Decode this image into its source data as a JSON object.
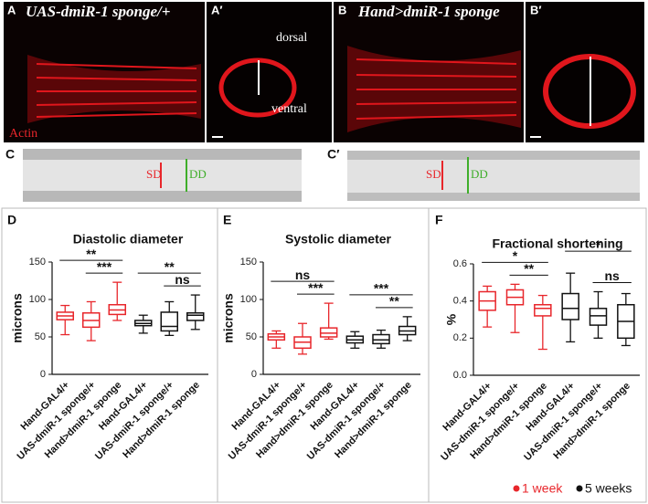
{
  "panels": {
    "a_label": "A",
    "a_title": "UAS-dmiR-1 sponge/+",
    "a_prime": "A′",
    "dorsal": "dorsal",
    "ventral": "ventral",
    "actin": "Actin",
    "b_label": "B",
    "b_title": "Hand>dmiR-1 sponge",
    "b_prime": "B′",
    "c_label": "C",
    "c_prime": "C′",
    "c_sd": "SD",
    "c_dd": "DD",
    "cp_sd": "SD",
    "cp_dd": "DD",
    "d_label": "D",
    "e_label": "E",
    "f_label": "F"
  },
  "legend": [
    {
      "name": "1 week",
      "color": "#e8262b"
    },
    {
      "name": "5 weeks",
      "color": "#111111"
    }
  ],
  "chart_data": [
    {
      "type": "box",
      "title": "Diastolic diameter",
      "y_label": "microns",
      "categories": [
        "Hand-GAL4/+",
        "UAS-dmiR-1 sponge/+",
        "Hand>dmiR-1 sponge",
        "Hand-GAL4/+",
        "UAS-dmiR-1 sponge/+",
        "Hand>dmiR-1 sponge"
      ],
      "colors": [
        "#e8262b",
        "#e8262b",
        "#e8262b",
        "#111111",
        "#111111",
        "#111111"
      ],
      "boxes": [
        {
          "min": 53,
          "q1": 73,
          "median": 78,
          "q3": 83,
          "max": 92
        },
        {
          "min": 45,
          "q1": 63,
          "median": 72,
          "q3": 82,
          "max": 97
        },
        {
          "min": 72,
          "q1": 80,
          "median": 86,
          "q3": 93,
          "max": 123
        },
        {
          "min": 55,
          "q1": 65,
          "median": 68,
          "q3": 72,
          "max": 79
        },
        {
          "min": 52,
          "q1": 58,
          "median": 64,
          "q3": 83,
          "max": 97
        },
        {
          "min": 60,
          "q1": 72,
          "median": 79,
          "q3": 82,
          "max": 106
        }
      ],
      "significance": [
        {
          "label": "**",
          "from": 0,
          "to": 2
        },
        {
          "label": "***",
          "from": 1,
          "to": 2
        },
        {
          "label": "**",
          "from": 3,
          "to": 5
        },
        {
          "label": "ns",
          "from": 4,
          "to": 5
        }
      ],
      "ylim": [
        0,
        150
      ],
      "yticks": [
        0,
        50,
        100,
        150
      ]
    },
    {
      "type": "box",
      "title": "Systolic diameter",
      "y_label": "microns",
      "categories": [
        "Hand-GAL4/+",
        "UAS-dmiR-1 sponge/+",
        "Hand>dmiR-1 sponge",
        "Hand-GAL4/+",
        "UAS-dmiR-1 sponge/+",
        "Hand>dmiR-1 sponge"
      ],
      "colors": [
        "#e8262b",
        "#e8262b",
        "#e8262b",
        "#111111",
        "#111111",
        "#111111"
      ],
      "boxes": [
        {
          "min": 35,
          "q1": 46,
          "median": 50,
          "q3": 54,
          "max": 58
        },
        {
          "min": 27,
          "q1": 35,
          "median": 43,
          "q3": 50,
          "max": 68
        },
        {
          "min": 47,
          "q1": 50,
          "median": 55,
          "q3": 62,
          "max": 95
        },
        {
          "min": 35,
          "q1": 42,
          "median": 46,
          "q3": 51,
          "max": 57
        },
        {
          "min": 35,
          "q1": 41,
          "median": 46,
          "q3": 53,
          "max": 59
        },
        {
          "min": 45,
          "q1": 53,
          "median": 58,
          "q3": 64,
          "max": 77
        }
      ],
      "significance": [
        {
          "label": "ns",
          "from": 0,
          "to": 2
        },
        {
          "label": "***",
          "from": 1,
          "to": 2
        },
        {
          "label": "***",
          "from": 3,
          "to": 5
        },
        {
          "label": "**",
          "from": 4,
          "to": 5
        }
      ],
      "ylim": [
        0,
        150
      ],
      "yticks": [
        0,
        50,
        100,
        150
      ]
    },
    {
      "type": "box",
      "title": "Fractional shortening",
      "y_label": "%",
      "categories": [
        "Hand-GAL4/+",
        "UAS-dmiR-1 sponge/+",
        "Hand>dmiR-1 sponge",
        "Hand-GAL4/+",
        "UAS-dmiR-1 sponge/+",
        "Hand>dmiR-1 sponge"
      ],
      "colors": [
        "#e8262b",
        "#e8262b",
        "#e8262b",
        "#111111",
        "#111111",
        "#111111"
      ],
      "boxes": [
        {
          "min": 0.26,
          "q1": 0.35,
          "median": 0.4,
          "q3": 0.45,
          "max": 0.48
        },
        {
          "min": 0.23,
          "q1": 0.38,
          "median": 0.42,
          "q3": 0.46,
          "max": 0.49
        },
        {
          "min": 0.14,
          "q1": 0.32,
          "median": 0.36,
          "q3": 0.38,
          "max": 0.43
        },
        {
          "min": 0.18,
          "q1": 0.3,
          "median": 0.36,
          "q3": 0.44,
          "max": 0.55
        },
        {
          "min": 0.2,
          "q1": 0.27,
          "median": 0.32,
          "q3": 0.36,
          "max": 0.45
        },
        {
          "min": 0.16,
          "q1": 0.2,
          "median": 0.29,
          "q3": 0.38,
          "max": 0.44
        }
      ],
      "significance": [
        {
          "label": "*",
          "from": 0,
          "to": 2
        },
        {
          "label": "**",
          "from": 1,
          "to": 2
        },
        {
          "label": "*",
          "from": 3,
          "to": 5
        },
        {
          "label": "ns",
          "from": 4,
          "to": 5
        }
      ],
      "ylim": [
        0,
        0.6
      ],
      "yticks": [
        {
          "value": 0,
          "label": "0.0"
        },
        0.2,
        0.4,
        0.6
      ]
    }
  ]
}
